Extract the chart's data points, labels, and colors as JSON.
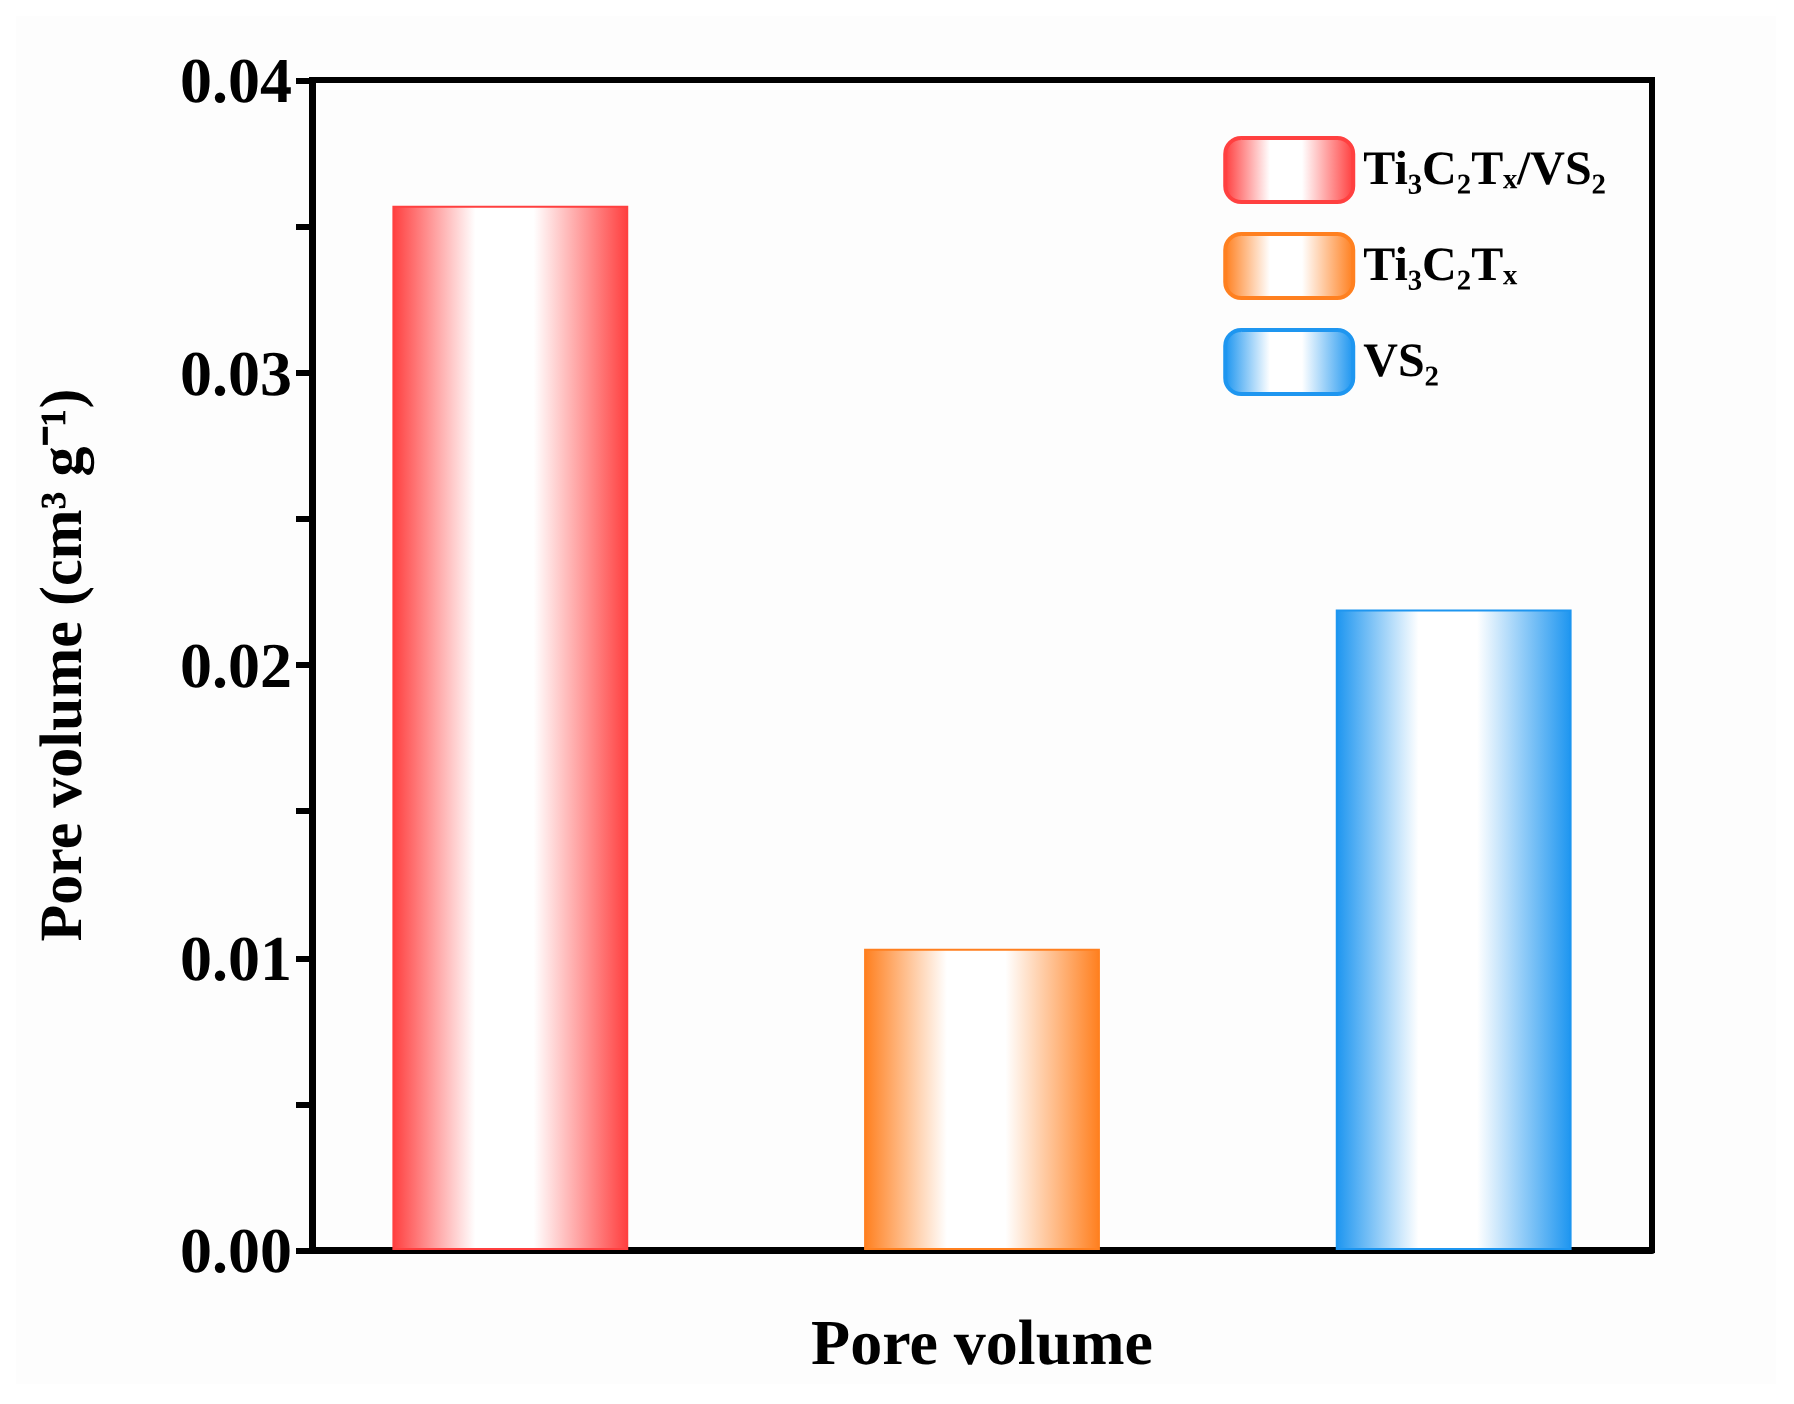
{
  "chart_data": {
    "type": "bar",
    "xlabel": "Pore volume",
    "ylabel": "Pore volume (cm³ g⁻¹)",
    "categories": [
      null
    ],
    "series": [
      {
        "name": "Ti₃C₂Tₓ/VS₂",
        "color": "#ff4040",
        "values": [
          0.0357
        ]
      },
      {
        "name": "Ti₃C₂Tₓ",
        "color": "#ff8020",
        "values": [
          0.0103
        ]
      },
      {
        "name": "VS₂",
        "color": "#1e96f0",
        "values": [
          0.0219
        ]
      }
    ],
    "ylim": [
      0,
      0.04
    ],
    "yticks": [
      {
        "value": 0,
        "label": "0.00"
      },
      {
        "value": 0.005,
        "label": null
      },
      {
        "value": 0.01,
        "label": "0.01"
      },
      {
        "value": 0.015,
        "label": null
      },
      {
        "value": 0.02,
        "label": "0.02"
      },
      {
        "value": 0.025,
        "label": null
      },
      {
        "value": 0.03,
        "label": "0.03"
      },
      {
        "value": 0.035,
        "label": null
      },
      {
        "value": 0.04,
        "label": "0.04"
      }
    ],
    "grid": false,
    "legend": "top right"
  }
}
